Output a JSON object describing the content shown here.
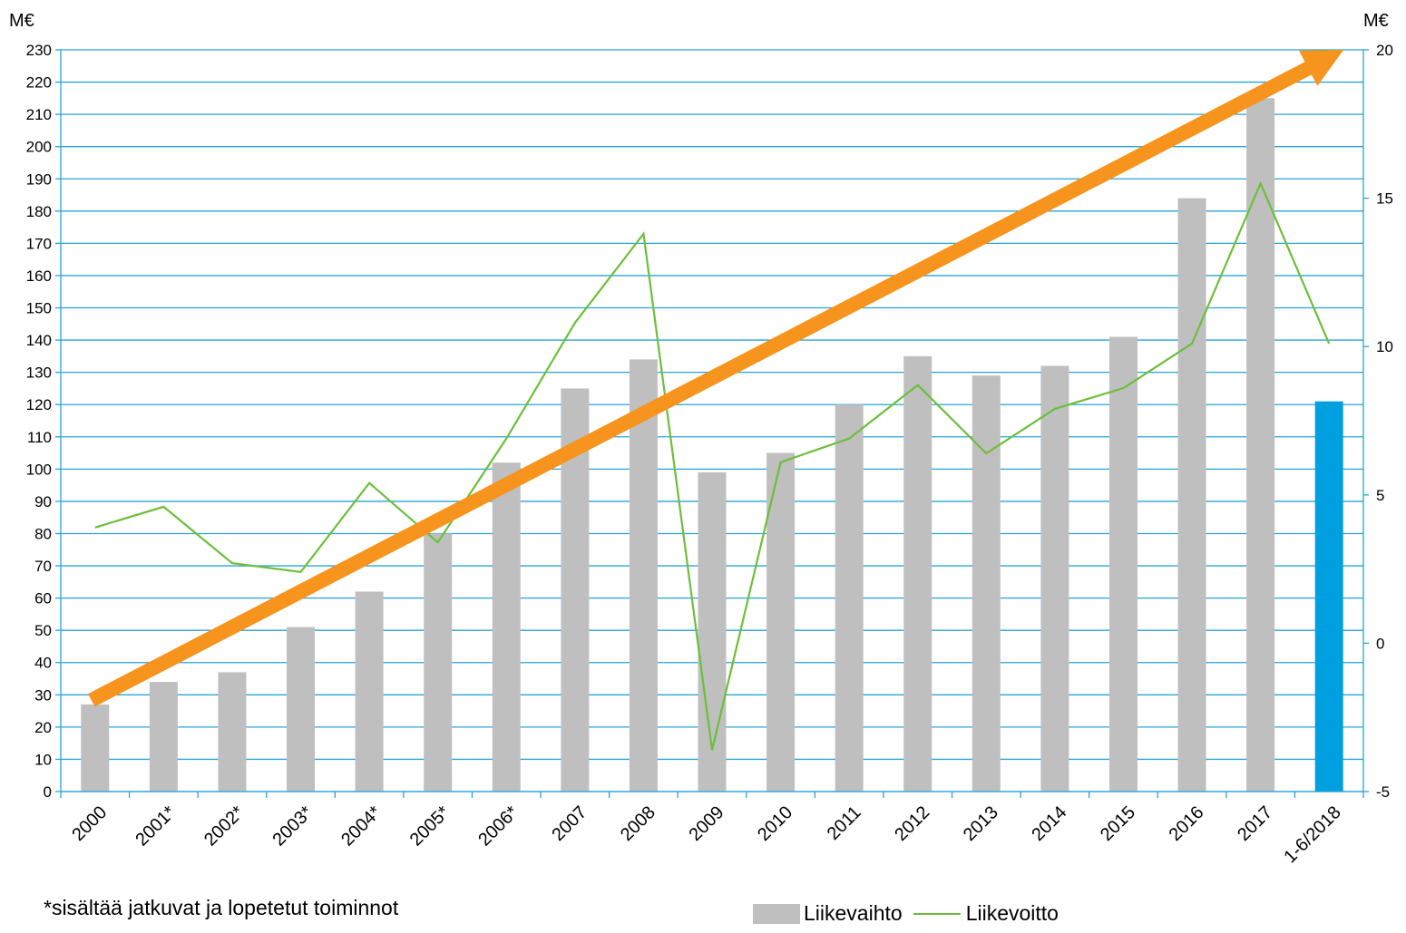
{
  "chart_data": {
    "type": "bar",
    "left_axis_unit": "M€",
    "right_axis_unit": "M€",
    "categories": [
      "2000",
      "2001*",
      "2002*",
      "2003*",
      "2004*",
      "2005*",
      "2006*",
      "2007",
      "2008",
      "2009",
      "2010",
      "2011",
      "2012",
      "2013",
      "2014",
      "2015",
      "2016",
      "2017",
      "1-6/2018"
    ],
    "series": [
      {
        "name": "Liikevaihto",
        "type": "bar",
        "axis": "left",
        "values": [
          27,
          34,
          37,
          51,
          62,
          80,
          102,
          125,
          134,
          99,
          105,
          120,
          135,
          129,
          132,
          141,
          184,
          215,
          121
        ],
        "color": "#bfbfbf",
        "highlight_index": 18,
        "highlight_color": "#00a0e0"
      },
      {
        "name": "Liikevoitto",
        "type": "line",
        "axis": "right",
        "values": [
          3.9,
          4.6,
          2.7,
          2.4,
          5.4,
          3.4,
          6.9,
          10.8,
          13.8,
          -3.6,
          6.1,
          6.9,
          8.7,
          6.4,
          7.9,
          8.6,
          10.1,
          15.5,
          10.1
        ],
        "color": "#6bbf3a"
      }
    ],
    "left_axis": {
      "ylim": [
        0,
        230
      ],
      "ticks": [
        0,
        10,
        20,
        30,
        40,
        50,
        60,
        70,
        80,
        90,
        100,
        110,
        120,
        130,
        140,
        150,
        160,
        170,
        180,
        190,
        200,
        210,
        220,
        230
      ]
    },
    "right_axis": {
      "ylim": [
        -5,
        20
      ],
      "ticks": [
        -5,
        0,
        5,
        10,
        15,
        20
      ]
    },
    "trend_arrow": {
      "from": {
        "category": "2000",
        "value": 30
      },
      "to": {
        "category": "1-6/2018",
        "value": 230
      },
      "color": "#f7941d"
    },
    "grid": true,
    "grid_color": "#29a3d9",
    "legend_position": "bottom-right",
    "footnote": "*sisältää jatkuvat ja lopetetut toiminnot"
  }
}
